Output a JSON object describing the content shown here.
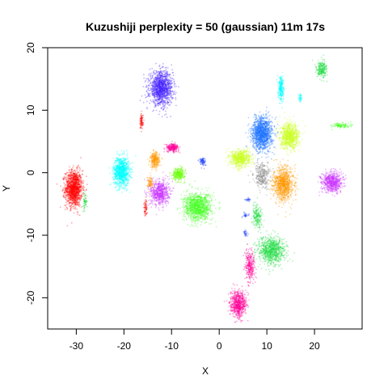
{
  "chart_data": {
    "type": "scatter",
    "title": "Kuzushiji perplexity = 50 (gaussian) 11m 17s",
    "xlabel": "X",
    "ylabel": "Y",
    "xlim": [
      -36,
      30
    ],
    "ylim": [
      -25,
      20
    ],
    "xticks": [
      -30,
      -20,
      -10,
      0,
      10,
      20
    ],
    "yticks": [
      -20,
      -10,
      0,
      10,
      20
    ],
    "grid": false,
    "legend": "none",
    "clusters": [
      {
        "center": [
          -30.5,
          -2.5
        ],
        "spread": [
          1.6,
          2.6
        ],
        "color": "#ff0000",
        "n": 1300
      },
      {
        "center": [
          -28.2,
          -4.6
        ],
        "spread": [
          0.4,
          1.2
        ],
        "color": "#22dd44",
        "n": 60
      },
      {
        "center": [
          -20.5,
          0.2
        ],
        "spread": [
          1.5,
          2.1
        ],
        "color": "#00ffff",
        "n": 1000
      },
      {
        "center": [
          -12.2,
          13.5
        ],
        "spread": [
          2.2,
          2.4
        ],
        "color": "#4422ff",
        "n": 1300
      },
      {
        "center": [
          -16.3,
          8.2
        ],
        "spread": [
          0.3,
          1.1
        ],
        "color": "#ff0000",
        "n": 80
      },
      {
        "center": [
          -13.5,
          2.0
        ],
        "spread": [
          0.9,
          1.1
        ],
        "color": "#ff9900",
        "n": 300
      },
      {
        "center": [
          -9.8,
          4.0
        ],
        "spread": [
          1.2,
          0.6
        ],
        "color": "#ff0099",
        "n": 250
      },
      {
        "center": [
          -8.5,
          -0.2
        ],
        "spread": [
          1.2,
          0.9
        ],
        "color": "#66ff00",
        "n": 300
      },
      {
        "center": [
          -12.5,
          -3.2
        ],
        "spread": [
          1.8,
          1.8
        ],
        "color": "#cc33ff",
        "n": 700
      },
      {
        "center": [
          -14.5,
          -1.5
        ],
        "spread": [
          0.6,
          0.9
        ],
        "color": "#ff9900",
        "n": 80
      },
      {
        "center": [
          -15.5,
          -5.5
        ],
        "spread": [
          0.3,
          1.3
        ],
        "color": "#ff0000",
        "n": 60
      },
      {
        "center": [
          -3.5,
          1.8
        ],
        "spread": [
          0.6,
          0.6
        ],
        "color": "#2244ff",
        "n": 90
      },
      {
        "center": [
          -4.5,
          -5.5
        ],
        "spread": [
          2.6,
          2.0
        ],
        "color": "#44ff22",
        "n": 1200
      },
      {
        "center": [
          9.0,
          6.3
        ],
        "spread": [
          1.9,
          2.4
        ],
        "color": "#1e73ff",
        "n": 1300
      },
      {
        "center": [
          14.8,
          5.8
        ],
        "spread": [
          1.8,
          1.8
        ],
        "color": "#ccff22",
        "n": 900
      },
      {
        "center": [
          4.5,
          2.3
        ],
        "spread": [
          1.9,
          1.2
        ],
        "color": "#ccff22",
        "n": 700
      },
      {
        "center": [
          13.5,
          -1.8
        ],
        "spread": [
          1.9,
          2.4
        ],
        "color": "#ff9900",
        "n": 1000
      },
      {
        "center": [
          9.0,
          -0.5
        ],
        "spread": [
          1.5,
          1.8
        ],
        "color": "#888888",
        "n": 300
      },
      {
        "center": [
          23.7,
          -1.5
        ],
        "spread": [
          1.9,
          1.4
        ],
        "color": "#cc33ff",
        "n": 700
      },
      {
        "center": [
          13.0,
          13.5
        ],
        "spread": [
          0.5,
          1.8
        ],
        "color": "#00ffff",
        "n": 250
      },
      {
        "center": [
          21.5,
          16.5
        ],
        "spread": [
          1.0,
          1.3
        ],
        "color": "#22dd44",
        "n": 250
      },
      {
        "center": [
          25.5,
          7.5
        ],
        "spread": [
          1.8,
          0.4
        ],
        "color": "#44ff22",
        "n": 120
      },
      {
        "center": [
          17.0,
          12.0
        ],
        "spread": [
          0.3,
          0.6
        ],
        "color": "#00ffff",
        "n": 40
      },
      {
        "center": [
          11.0,
          -12.5
        ],
        "spread": [
          2.6,
          2.0
        ],
        "color": "#22dd44",
        "n": 900
      },
      {
        "center": [
          8.0,
          -7.0
        ],
        "spread": [
          1.0,
          1.6
        ],
        "color": "#22dd44",
        "n": 200
      },
      {
        "center": [
          6.5,
          -15.0
        ],
        "spread": [
          0.9,
          2.3
        ],
        "color": "#ff0099",
        "n": 300
      },
      {
        "center": [
          4.0,
          -21.0
        ],
        "spread": [
          1.5,
          1.8
        ],
        "color": "#ff0099",
        "n": 700
      },
      {
        "center": [
          5.5,
          -6.8
        ],
        "spread": [
          0.5,
          0.4
        ],
        "color": "#2244ff",
        "n": 30
      },
      {
        "center": [
          5.5,
          -9.7
        ],
        "spread": [
          0.4,
          0.5
        ],
        "color": "#2244ff",
        "n": 30
      },
      {
        "center": [
          6.0,
          -4.3
        ],
        "spread": [
          0.5,
          0.3
        ],
        "color": "#2244ff",
        "n": 25
      }
    ]
  }
}
